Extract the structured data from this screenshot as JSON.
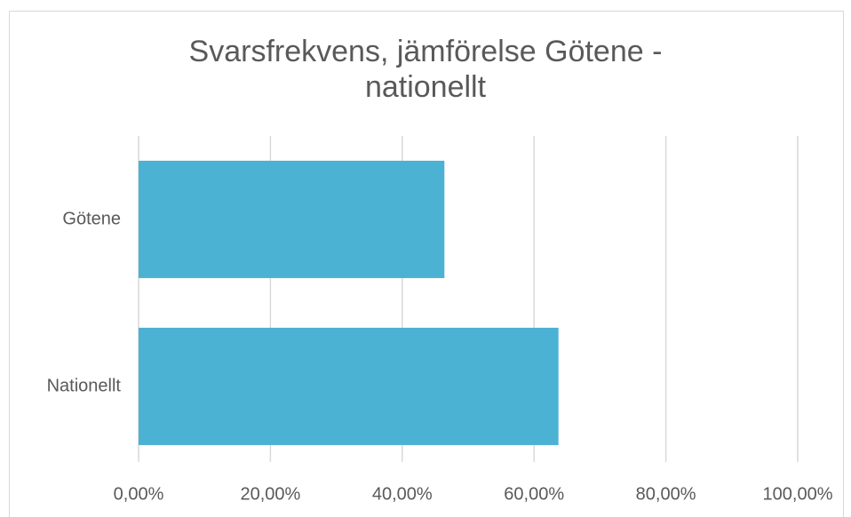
{
  "chart_data": {
    "type": "barh",
    "title": "Svarsfrekvens, jämförelse Götene - nationellt",
    "categories": [
      "Götene",
      "Nationellt"
    ],
    "values": [
      46.4,
      63.7
    ],
    "color": "#4bb2d3",
    "xlim": [
      0,
      100
    ],
    "xticks": [
      {
        "value": 0,
        "label": "0,00%"
      },
      {
        "value": 20,
        "label": "20,00%"
      },
      {
        "value": 40,
        "label": "40,00%"
      },
      {
        "value": 60,
        "label": "60,00%"
      },
      {
        "value": 80,
        "label": "80,00%"
      },
      {
        "value": 100,
        "label": "100,00%"
      }
    ],
    "grid": true
  }
}
